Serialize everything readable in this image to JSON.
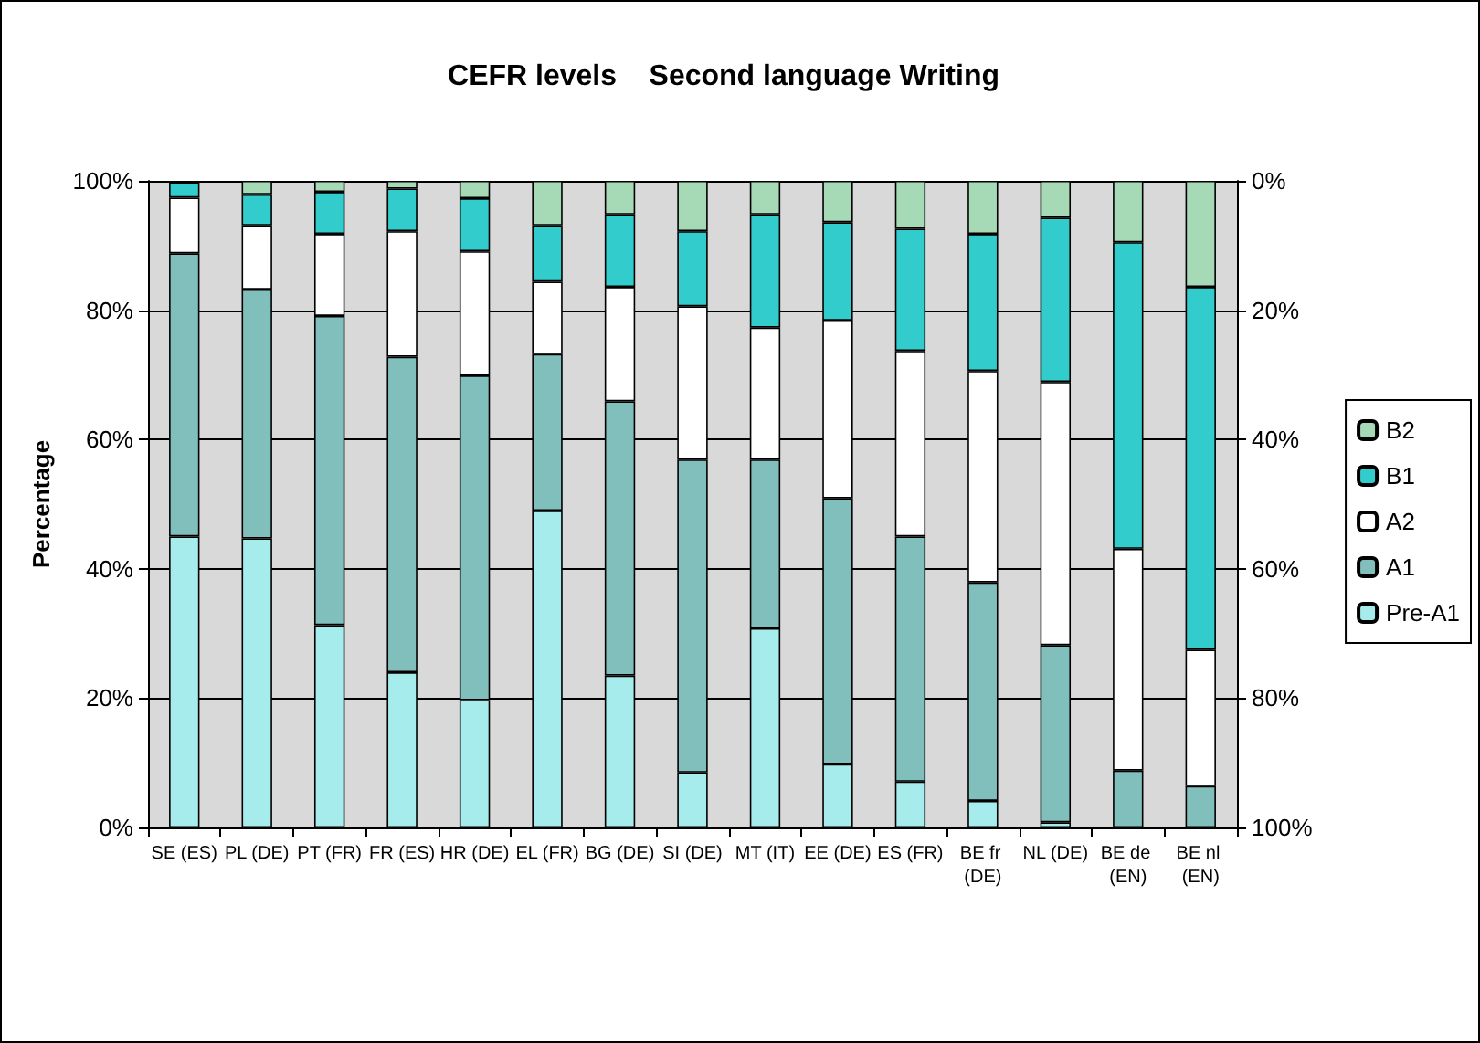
{
  "chart_data": {
    "type": "bar",
    "stacked": true,
    "title": "CEFR levels    Second language Writing",
    "ylabel": "Percentage",
    "categories": [
      "SE (ES)",
      "PL (DE)",
      "PT (FR)",
      "FR (ES)",
      "HR (DE)",
      "EL (FR)",
      "BG (DE)",
      "SI (DE)",
      "MT (IT)",
      "EE (DE)",
      "ES (FR)",
      "BE fr (DE)",
      "NL (DE)",
      "BE de (EN)",
      "BE nl (EN)"
    ],
    "series": [
      {
        "name": "Pre-A1",
        "color": "#a6ecec",
        "values": [
          45.0,
          44.7,
          31.3,
          24.0,
          19.7,
          49.0,
          23.5,
          8.5,
          30.8,
          9.8,
          7.1,
          4.1,
          0.8,
          0,
          0
        ]
      },
      {
        "name": "A1",
        "color": "#80bfbb",
        "values": [
          43.8,
          38.5,
          47.8,
          48.8,
          50.2,
          24.2,
          42.4,
          48.4,
          26.1,
          41.1,
          37.9,
          33.8,
          27.4,
          8.8,
          6.4
        ]
      },
      {
        "name": "A2",
        "color": "#ffffff",
        "values": [
          8.6,
          9.9,
          12.7,
          19.4,
          19.2,
          11.2,
          17.7,
          23.7,
          20.4,
          27.5,
          28.7,
          32.7,
          40.7,
          34.3,
          21.1
        ]
      },
      {
        "name": "B1",
        "color": "#33cccc",
        "values": [
          2.3,
          4.8,
          6.5,
          6.6,
          8.2,
          8.7,
          11.2,
          11.6,
          17.5,
          15.2,
          18.9,
          21.2,
          25.4,
          47.4,
          56.1
        ]
      },
      {
        "name": "B2",
        "color": "#a6d9b5",
        "values": [
          0.3,
          2.1,
          1.7,
          1.2,
          2.7,
          6.9,
          5.2,
          7.8,
          5.2,
          6.4,
          7.4,
          8.2,
          5.7,
          9.5,
          16.4
        ]
      }
    ],
    "ylim": [
      0,
      100
    ],
    "yticks": [
      {
        "value": 0,
        "label": "0%"
      },
      {
        "value": 20,
        "label": "20%"
      },
      {
        "value": 40,
        "label": "40%"
      },
      {
        "value": 60,
        "label": "60%"
      },
      {
        "value": 80,
        "label": "80%"
      },
      {
        "value": 100,
        "label": "100%"
      }
    ],
    "y2lim": [
      100,
      0
    ],
    "y2ticks": [
      {
        "value": 0,
        "label": "0%"
      },
      {
        "value": 20,
        "label": "20%"
      },
      {
        "value": 40,
        "label": "40%"
      },
      {
        "value": 60,
        "label": "60%"
      },
      {
        "value": 80,
        "label": "80%"
      },
      {
        "value": 100,
        "label": "100%"
      }
    ],
    "grid": "y",
    "legend": "right"
  }
}
